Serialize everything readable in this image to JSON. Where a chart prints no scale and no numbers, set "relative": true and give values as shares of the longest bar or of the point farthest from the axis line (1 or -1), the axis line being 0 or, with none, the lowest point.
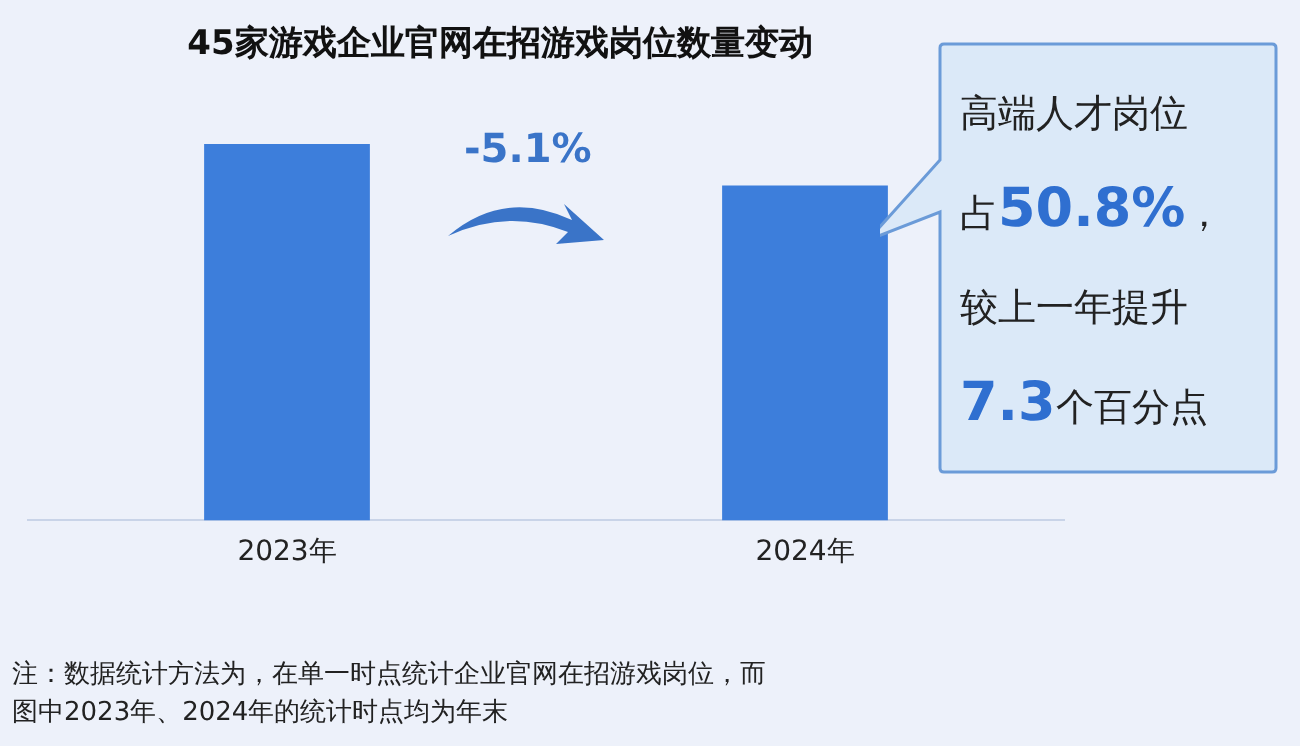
{
  "chart_data": {
    "type": "bar",
    "title": "45家游戏企业官网在招游戏岗位数量变动",
    "categories": [
      "2023年",
      "2024年"
    ],
    "values": [
      1,
      0.89
    ],
    "color": "#3d7edb",
    "relative": true,
    "grid": false,
    "legend": false,
    "annotations": [
      "-5.1%",
      "高端人才岗位",
      "占50.8%，",
      "较上一年提升",
      "7.3个百分点",
      "注：数据统计方法为，在单一时点统计企业官网在招游戏岗位，而",
      "图中2023年、2024年的统计时点均为年末"
    ]
  }
}
